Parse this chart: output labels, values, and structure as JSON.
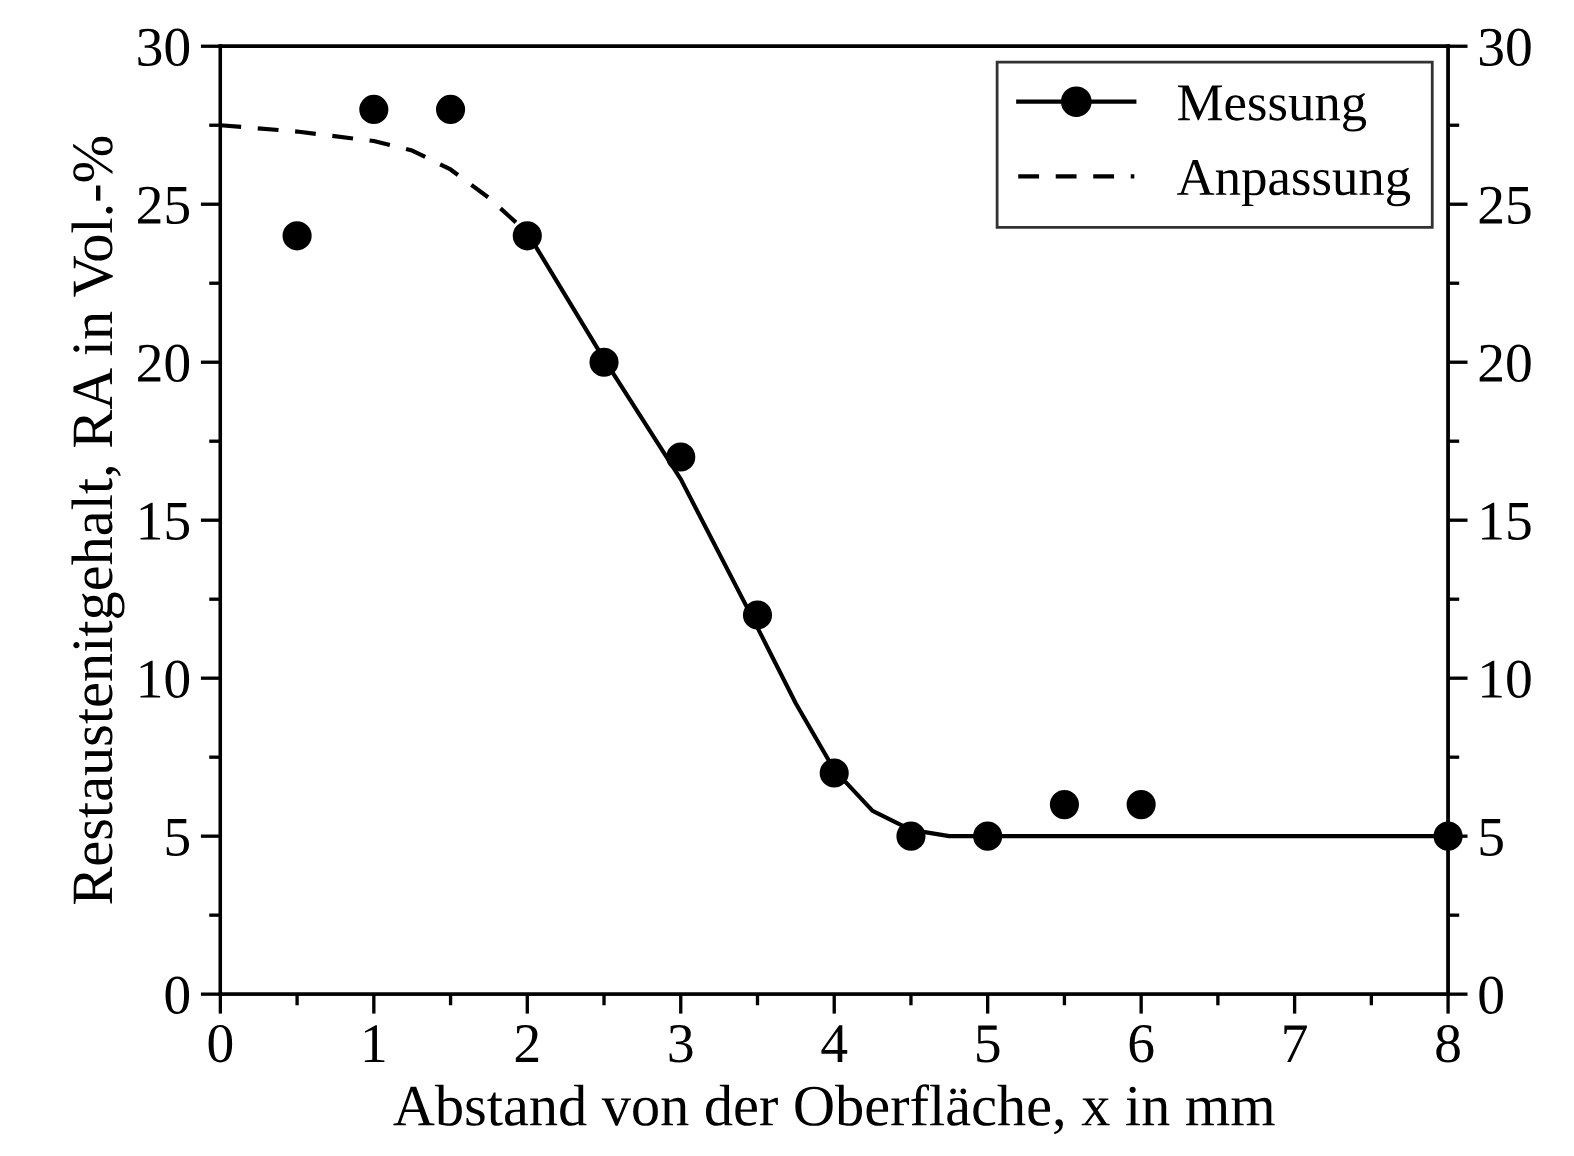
{
  "chart_data": {
    "type": "scatter",
    "xlabel": "Abstand von der Oberfläche, x in mm",
    "ylabel": "Restaustenitgehalt, RA in Vol.-%",
    "xlim": [
      0,
      8
    ],
    "xticks": [
      0,
      1,
      2,
      3,
      4,
      5,
      6,
      7,
      8
    ],
    "ylim": [
      0,
      30
    ],
    "yticks": [
      0,
      5,
      10,
      15,
      20,
      25,
      30
    ],
    "y2lim": [
      0,
      30
    ],
    "y2ticks": [
      0,
      5,
      10,
      15,
      20,
      25,
      30
    ],
    "legend": "top right",
    "grid": false,
    "series": [
      {
        "name": "Messung",
        "color": "#000000",
        "marker": "circle",
        "x": [
          0.5,
          1,
          1.5,
          2,
          2.5,
          3,
          3.5,
          4,
          4.5,
          5,
          5.5,
          6,
          8
        ],
        "values": [
          24,
          28,
          28,
          24,
          20,
          17,
          12,
          7,
          5,
          5,
          6,
          6,
          5
        ]
      },
      {
        "name": "Anpassung",
        "type": "line",
        "color": "#000000",
        "line_style": "dashed",
        "x": [
          0,
          0.5,
          1,
          1.25,
          1.5,
          1.75,
          2
        ],
        "values": [
          27.5,
          27.3,
          27.0,
          26.7,
          26.1,
          25.2,
          24.1
        ]
      },
      {
        "type": "line",
        "color": "#000000",
        "line_style": "solid",
        "x": [
          2,
          2.5,
          3,
          3.5,
          3.75,
          4,
          4.25,
          4.5,
          4.75,
          5,
          8
        ],
        "values": [
          24.1,
          20.1,
          16.3,
          11.6,
          9.2,
          7.1,
          5.8,
          5.2,
          5.0,
          5.0,
          5.0
        ]
      }
    ]
  }
}
